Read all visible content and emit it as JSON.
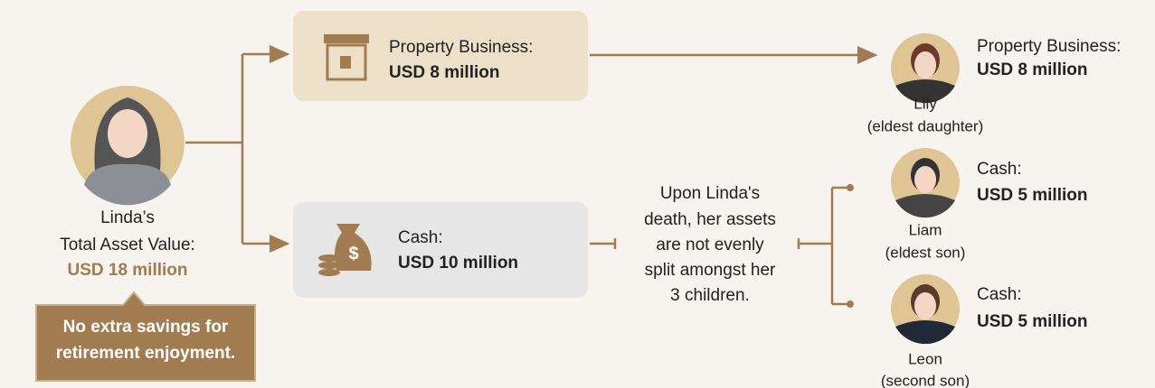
{
  "owner": {
    "lines": [
      "Linda’s",
      "Total Asset Value:"
    ],
    "total": "USD 18 million"
  },
  "callout": {
    "lines": [
      "No extra savings for",
      "retirement enjoyment."
    ]
  },
  "assets": [
    {
      "label": "Property Business:",
      "value": "USD 8 million"
    },
    {
      "label": "Cash:",
      "value": "USD 10 million"
    }
  ],
  "note": {
    "lines": [
      "Upon Linda's",
      "death, her assets",
      "are not evenly",
      "split amongst her",
      "3 children."
    ]
  },
  "heirs": [
    {
      "label": "Property Business:",
      "value": "USD 8 million",
      "name": "Lily",
      "relation": "(eldest daughter)"
    },
    {
      "label": "Cash:",
      "value": "USD 5 million",
      "name": "Liam",
      "relation": "(eldest son)"
    },
    {
      "label": "Cash:",
      "value": "USD 5 million",
      "name": "Leon",
      "relation": "(second son)"
    }
  ]
}
